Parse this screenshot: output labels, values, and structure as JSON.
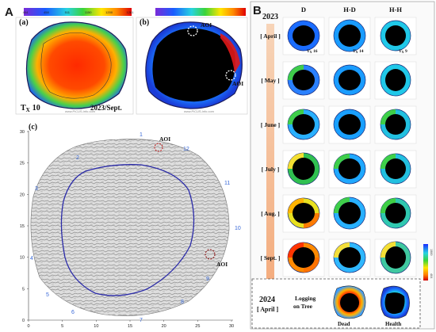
{
  "panel_A": {
    "letter": "A",
    "sub_a": {
      "label": "(a)",
      "tx_label": "T",
      "tx_sub": "X",
      "tx_value": "10",
      "date": "2023/Sept.",
      "watermark": "www.PiCUS-info.com",
      "colorbar_ticks": [
        "404",
        "458",
        "511",
        "1150",
        "1200",
        "1261"
      ]
    },
    "sub_b": {
      "label": "(b)",
      "aoi_top": "AOI",
      "aoi_right": "AOI",
      "watermark": "www.PiCUS-info.com"
    },
    "sub_c": {
      "label": "(c)",
      "aoi_top": "AOI",
      "aoi_right": "AOI",
      "sensor_numbers": [
        "1",
        "2",
        "3",
        "4",
        "5",
        "6",
        "7",
        "8",
        "9",
        "10",
        "11",
        "12"
      ],
      "y_ticks": [
        "0",
        "5",
        "10",
        "15",
        "20",
        "25",
        "30"
      ],
      "x_ticks": [
        "0",
        "5",
        "10",
        "15",
        "20",
        "25",
        "30"
      ]
    }
  },
  "panel_B": {
    "letter": "B",
    "year_top": "2023",
    "year_bottom": "2024",
    "columns": [
      "D",
      "H-D",
      "H-H"
    ],
    "months": [
      "[ April ]",
      "[ May ]",
      "[ June ]",
      "[ July ]",
      "[ Aug. ]",
      "[ Sept. ]"
    ],
    "bottom_month": "[ April ]",
    "tx_labels": [
      {
        "base": "T",
        "sub": "X",
        "value": " 16"
      },
      {
        "base": "T",
        "sub": "X",
        "value": " 14"
      },
      {
        "base": "T",
        "sub": "X",
        "value": " 9"
      }
    ],
    "logging_label_1": "Logging",
    "logging_label_2": "on Tree",
    "dead_label": "Dead",
    "health_label": "Health",
    "colorbar_label_top": "1500",
    "colorbar_label_bottom": "404"
  }
}
